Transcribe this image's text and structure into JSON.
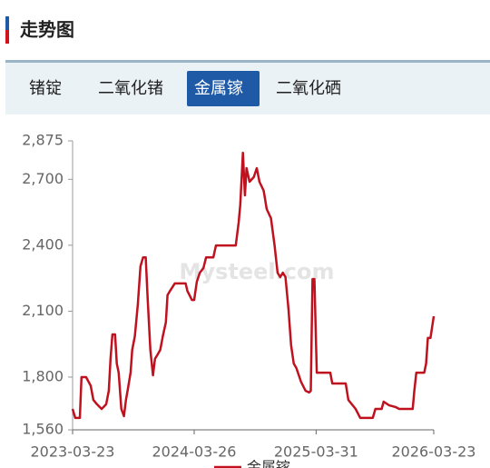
{
  "header": {
    "title": "走势图"
  },
  "tabs": {
    "items": [
      "锗锭",
      "二氧化锗",
      "金属镓",
      "二氧化硒"
    ],
    "active": 2
  },
  "chart_data": {
    "type": "line",
    "watermark": "Mysteel.com",
    "x": [
      "2023-03-23",
      "2023-03-31",
      "2023-04-14",
      "2023-04-19",
      "2023-05-03",
      "2023-05-17",
      "2023-05-25",
      "2023-06-05",
      "2023-06-19",
      "2023-07-03",
      "2023-07-11",
      "2023-07-16",
      "2023-07-22",
      "2023-07-30",
      "2023-08-04",
      "2023-08-10",
      "2023-08-18",
      "2023-08-26",
      "2023-09-01",
      "2023-09-06",
      "2023-09-15",
      "2023-09-20",
      "2023-09-28",
      "2023-10-07",
      "2023-10-15",
      "2023-10-23",
      "2023-10-31",
      "2023-11-06",
      "2023-11-14",
      "2023-11-22",
      "2023-11-28",
      "2023-12-06",
      "2023-12-14",
      "2023-12-22",
      "2023-12-31",
      "2024-01-05",
      "2024-01-13",
      "2024-01-27",
      "2024-02-29",
      "2024-03-05",
      "2024-03-19",
      "2024-03-26",
      "2024-04-03",
      "2024-04-12",
      "2024-04-23",
      "2024-05-01",
      "2024-05-23",
      "2024-05-31",
      "2024-07-30",
      "2024-08-08",
      "2024-08-13",
      "2024-08-21",
      "2024-08-27",
      "2024-09-01",
      "2024-09-10",
      "2024-09-23",
      "2024-10-02",
      "2024-10-10",
      "2024-10-23",
      "2024-11-01",
      "2024-11-14",
      "2024-11-25",
      "2024-12-04",
      "2024-12-12",
      "2024-12-20",
      "2024-12-28",
      "2025-01-06",
      "2025-01-14",
      "2025-01-22",
      "2025-01-30",
      "2025-02-13",
      "2025-02-27",
      "2025-03-10",
      "2025-03-15",
      "2025-03-20",
      "2025-03-26",
      "2025-04-02",
      "2025-05-13",
      "2025-05-19",
      "2025-06-29",
      "2025-07-07",
      "2025-07-29",
      "2025-08-12",
      "2025-09-19",
      "2025-09-27",
      "2025-10-16",
      "2025-10-22",
      "2025-11-07",
      "2025-11-27",
      "2025-12-08",
      "2026-01-18",
      "2026-01-23",
      "2026-01-29",
      "2026-02-22",
      "2026-02-28",
      "2026-03-05",
      "2026-03-13",
      "2026-03-23"
    ],
    "series": [
      {
        "name": "金属镓",
        "color": "#c0111f",
        "values": [
          1655,
          1614,
          1614,
          1800,
          1800,
          1760,
          1696,
          1676,
          1655,
          1676,
          1738,
          1883,
          1994,
          1994,
          1862,
          1820,
          1655,
          1622,
          1696,
          1738,
          1820,
          1924,
          1986,
          2131,
          2304,
          2345,
          2345,
          2151,
          1924,
          1808,
          1883,
          1903,
          1924,
          1987,
          2049,
          2173,
          2193,
          2226,
          2226,
          2193,
          2151,
          2151,
          2234,
          2275,
          2296,
          2345,
          2345,
          2399,
          2399,
          2503,
          2585,
          2821,
          2627,
          2751,
          2689,
          2710,
          2751,
          2689,
          2648,
          2565,
          2523,
          2399,
          2275,
          2255,
          2275,
          2255,
          2110,
          1945,
          1862,
          1841,
          1779,
          1738,
          1730,
          1738,
          2246,
          2246,
          1820,
          1820,
          1771,
          1771,
          1696,
          1655,
          1614,
          1614,
          1655,
          1655,
          1688,
          1672,
          1664,
          1655,
          1655,
          1738,
          1820,
          1820,
          1862,
          1978,
          1978,
          2077
        ]
      }
    ],
    "xlim": [
      "2023-03-23",
      "2026-03-23"
    ],
    "xticks": [
      "2023-03-23",
      "2024-03-26",
      "2025-03-31",
      "2026-03-23"
    ],
    "ylim": [
      1560,
      2875
    ],
    "yticks": [
      {
        "value": 1560,
        "label": "1,560"
      },
      {
        "value": 1800,
        "label": "1,800"
      },
      {
        "value": 2100,
        "label": "2,100"
      },
      {
        "value": 2400,
        "label": "2,400"
      },
      {
        "value": 2700,
        "label": "2,700"
      },
      {
        "value": 2875,
        "label": "2,875"
      }
    ],
    "legend": "bottom"
  }
}
